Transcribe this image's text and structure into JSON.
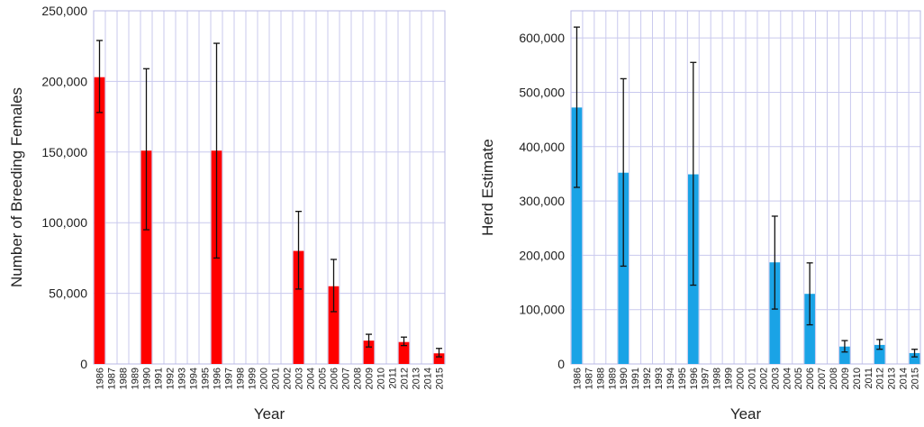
{
  "chart_data": [
    {
      "type": "bar",
      "title": "",
      "xlabel": "Year",
      "ylabel": "Number of Breeding Females",
      "ylim": [
        0,
        250000
      ],
      "yticks": [
        "0",
        "50,000",
        "100,000",
        "150,000",
        "200,000",
        "250,000"
      ],
      "grid": true,
      "color": "#ff0000",
      "categories": [
        "1986",
        "1987",
        "1988",
        "1989",
        "1990",
        "1991",
        "1992",
        "1993",
        "1994",
        "1995",
        "1996",
        "1997",
        "1998",
        "1999",
        "2000",
        "2001",
        "2002",
        "2003",
        "2004",
        "2005",
        "2006",
        "2007",
        "2008",
        "2009",
        "2010",
        "2011",
        "2012",
        "2013",
        "2014",
        "2015"
      ],
      "values": [
        203000,
        null,
        null,
        null,
        151000,
        null,
        null,
        null,
        null,
        null,
        151000,
        null,
        null,
        null,
        null,
        null,
        null,
        80000,
        null,
        null,
        55000,
        null,
        null,
        16500,
        null,
        null,
        15500,
        null,
        null,
        7500
      ],
      "error_low": [
        178000,
        null,
        null,
        null,
        95000,
        null,
        null,
        null,
        null,
        null,
        75000,
        null,
        null,
        null,
        null,
        null,
        null,
        53000,
        null,
        null,
        37000,
        null,
        null,
        12000,
        null,
        null,
        13000,
        null,
        null,
        5000
      ],
      "error_high": [
        229000,
        null,
        null,
        null,
        209000,
        null,
        null,
        null,
        null,
        null,
        227000,
        null,
        null,
        null,
        null,
        null,
        null,
        108000,
        null,
        null,
        74000,
        null,
        null,
        21000,
        null,
        null,
        19000,
        null,
        null,
        11000
      ]
    },
    {
      "type": "bar",
      "title": "",
      "xlabel": "Year",
      "ylabel": "Herd Estimate",
      "ylim": [
        0,
        650000
      ],
      "yticks": [
        "0",
        "100,000",
        "200,000",
        "300,000",
        "400,000",
        "500,000",
        "600,000"
      ],
      "grid": true,
      "color": "#1aa3e6",
      "categories": [
        "1986",
        "1987",
        "1988",
        "1989",
        "1990",
        "1991",
        "1992",
        "1993",
        "1994",
        "1995",
        "1996",
        "1997",
        "1998",
        "1999",
        "2000",
        "2001",
        "2002",
        "2003",
        "2004",
        "2005",
        "2006",
        "2007",
        "2008",
        "2009",
        "2010",
        "2011",
        "2012",
        "2013",
        "2014",
        "2015"
      ],
      "values": [
        472000,
        null,
        null,
        null,
        352000,
        null,
        null,
        null,
        null,
        null,
        349000,
        null,
        null,
        null,
        null,
        null,
        null,
        187000,
        null,
        null,
        129000,
        null,
        null,
        32000,
        null,
        null,
        35000,
        null,
        null,
        20000
      ],
      "error_low": [
        325000,
        null,
        null,
        null,
        180000,
        null,
        null,
        null,
        null,
        null,
        145000,
        null,
        null,
        null,
        null,
        null,
        null,
        101000,
        null,
        null,
        72000,
        null,
        null,
        22000,
        null,
        null,
        27000,
        null,
        null,
        13000
      ],
      "error_high": [
        620000,
        null,
        null,
        null,
        525000,
        null,
        null,
        null,
        null,
        null,
        555000,
        null,
        null,
        null,
        null,
        null,
        null,
        272000,
        null,
        null,
        186000,
        null,
        null,
        43000,
        null,
        null,
        45000,
        null,
        null,
        27000
      ]
    }
  ]
}
